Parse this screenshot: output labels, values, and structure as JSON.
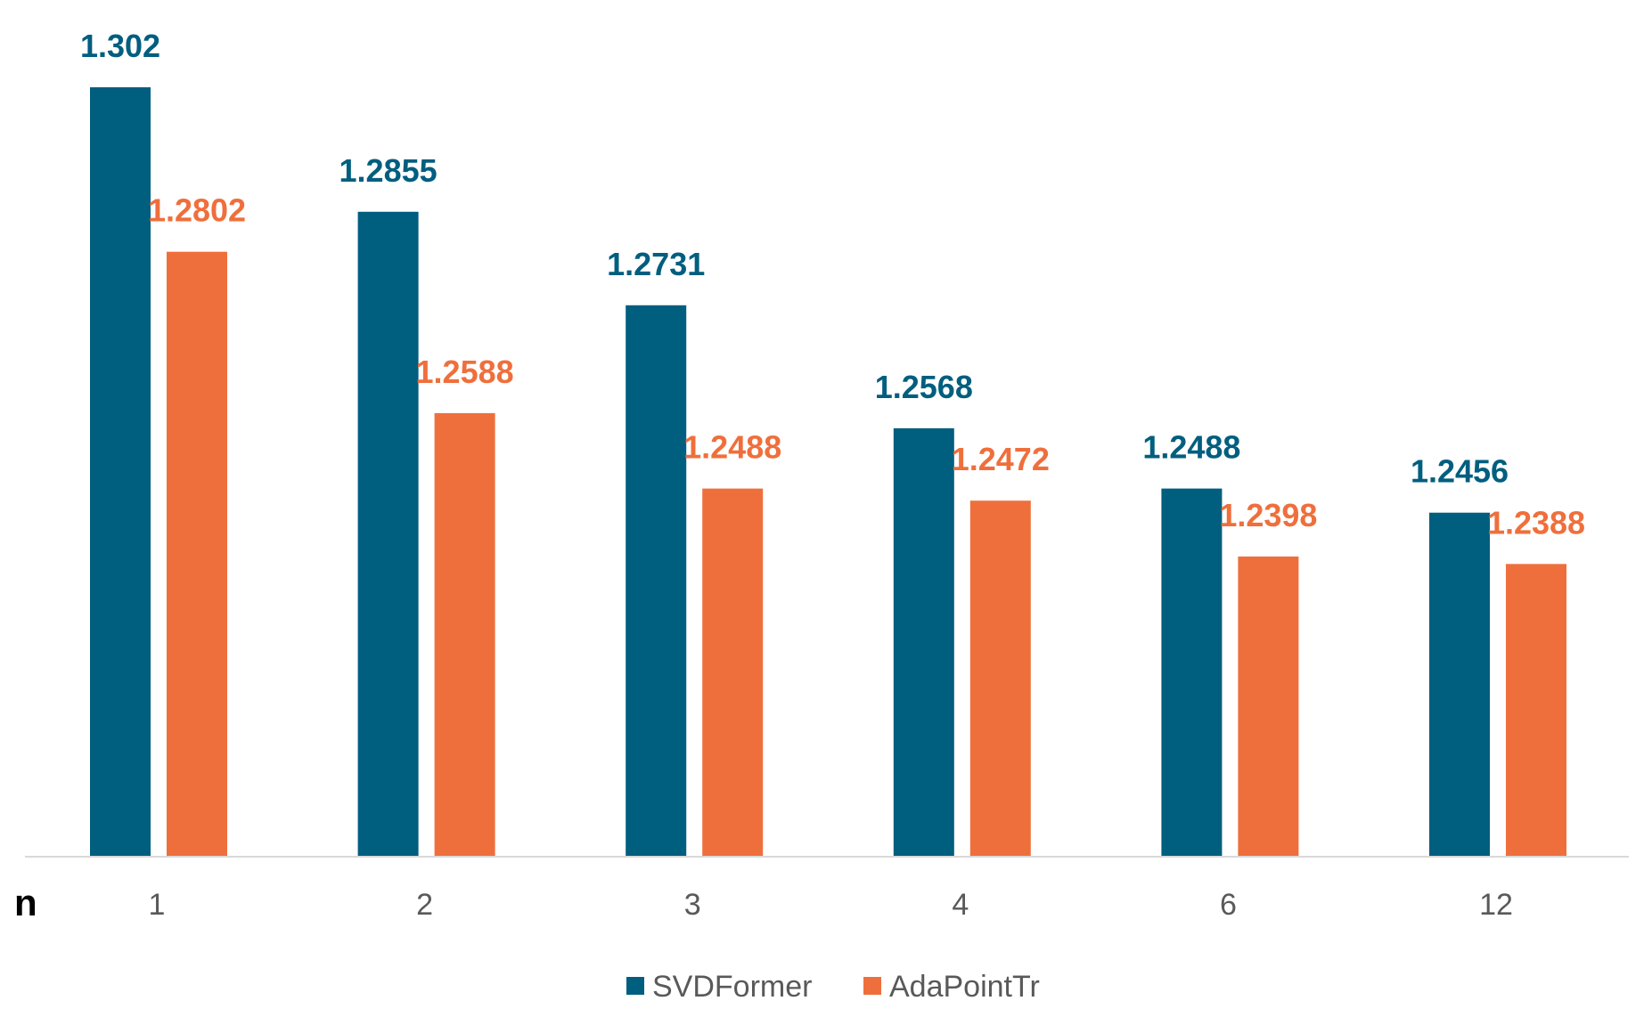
{
  "chart_data": {
    "type": "bar",
    "title": "",
    "xlabel": "n",
    "ylabel": "",
    "categories": [
      "1",
      "2",
      "3",
      "4",
      "6",
      "12"
    ],
    "series": [
      {
        "name": "SVDFormer",
        "color": "#005E7F",
        "values": [
          1.302,
          1.2855,
          1.2731,
          1.2568,
          1.2488,
          1.2456
        ],
        "labels": [
          "1.302",
          "1.2855",
          "1.2731",
          "1.2568",
          "1.2488",
          "1.2456"
        ]
      },
      {
        "name": "AdaPointTr",
        "color": "#EF6F3C",
        "values": [
          1.2802,
          1.2588,
          1.2488,
          1.2472,
          1.2398,
          1.2388
        ],
        "labels": [
          "1.2802",
          "1.2588",
          "1.2488",
          "1.2472",
          "1.2398",
          "1.2388"
        ]
      }
    ],
    "ylim": [
      1.2,
      1.302
    ],
    "grid": false,
    "y_axis_visible": false,
    "legend_position": "bottom"
  }
}
